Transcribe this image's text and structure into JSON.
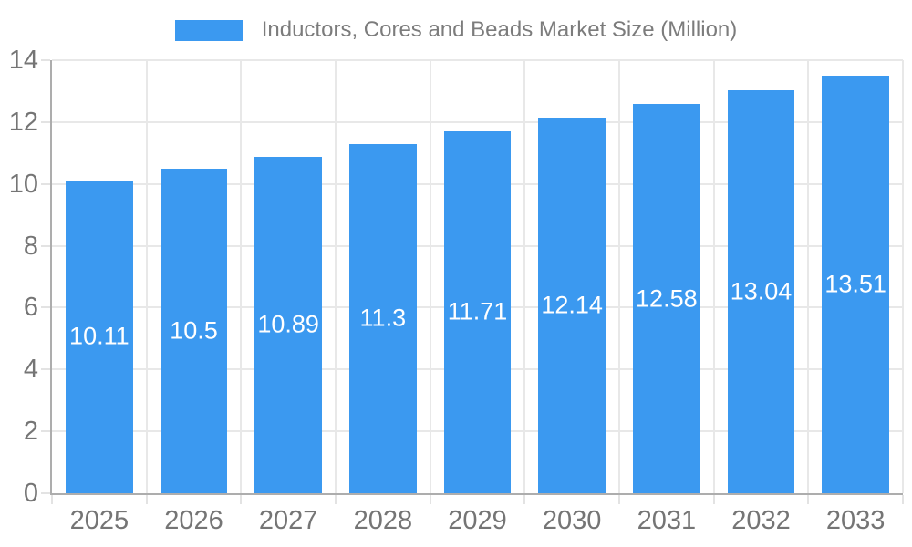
{
  "chart_data": {
    "type": "bar",
    "title": "Inductors, Cores and Beads Market Size (Million)",
    "categories": [
      "2025",
      "2026",
      "2027",
      "2028",
      "2029",
      "2030",
      "2031",
      "2032",
      "2033"
    ],
    "values": [
      10.11,
      10.5,
      10.89,
      11.3,
      11.71,
      12.14,
      12.58,
      13.04,
      13.51
    ],
    "value_labels": [
      "10.11",
      "10.5",
      "10.89",
      "11.3",
      "11.71",
      "12.14",
      "12.58",
      "13.04",
      "13.51"
    ],
    "xlabel": "",
    "ylabel": "",
    "ylim": [
      0,
      14
    ],
    "ytick_step": 2,
    "yticks": [
      0,
      2,
      4,
      6,
      8,
      10,
      12,
      14
    ],
    "grid": true,
    "legend_position": "top",
    "colors": {
      "bar": "#3B99F0",
      "bar_label": "#FFFFFF",
      "grid": "#E8E8E8",
      "tick": "#E3E3E3",
      "axis": "#ADADAD",
      "tick_label": "#757575",
      "legend_label": "#7C7C7C",
      "background": "#FFFFFF"
    }
  }
}
